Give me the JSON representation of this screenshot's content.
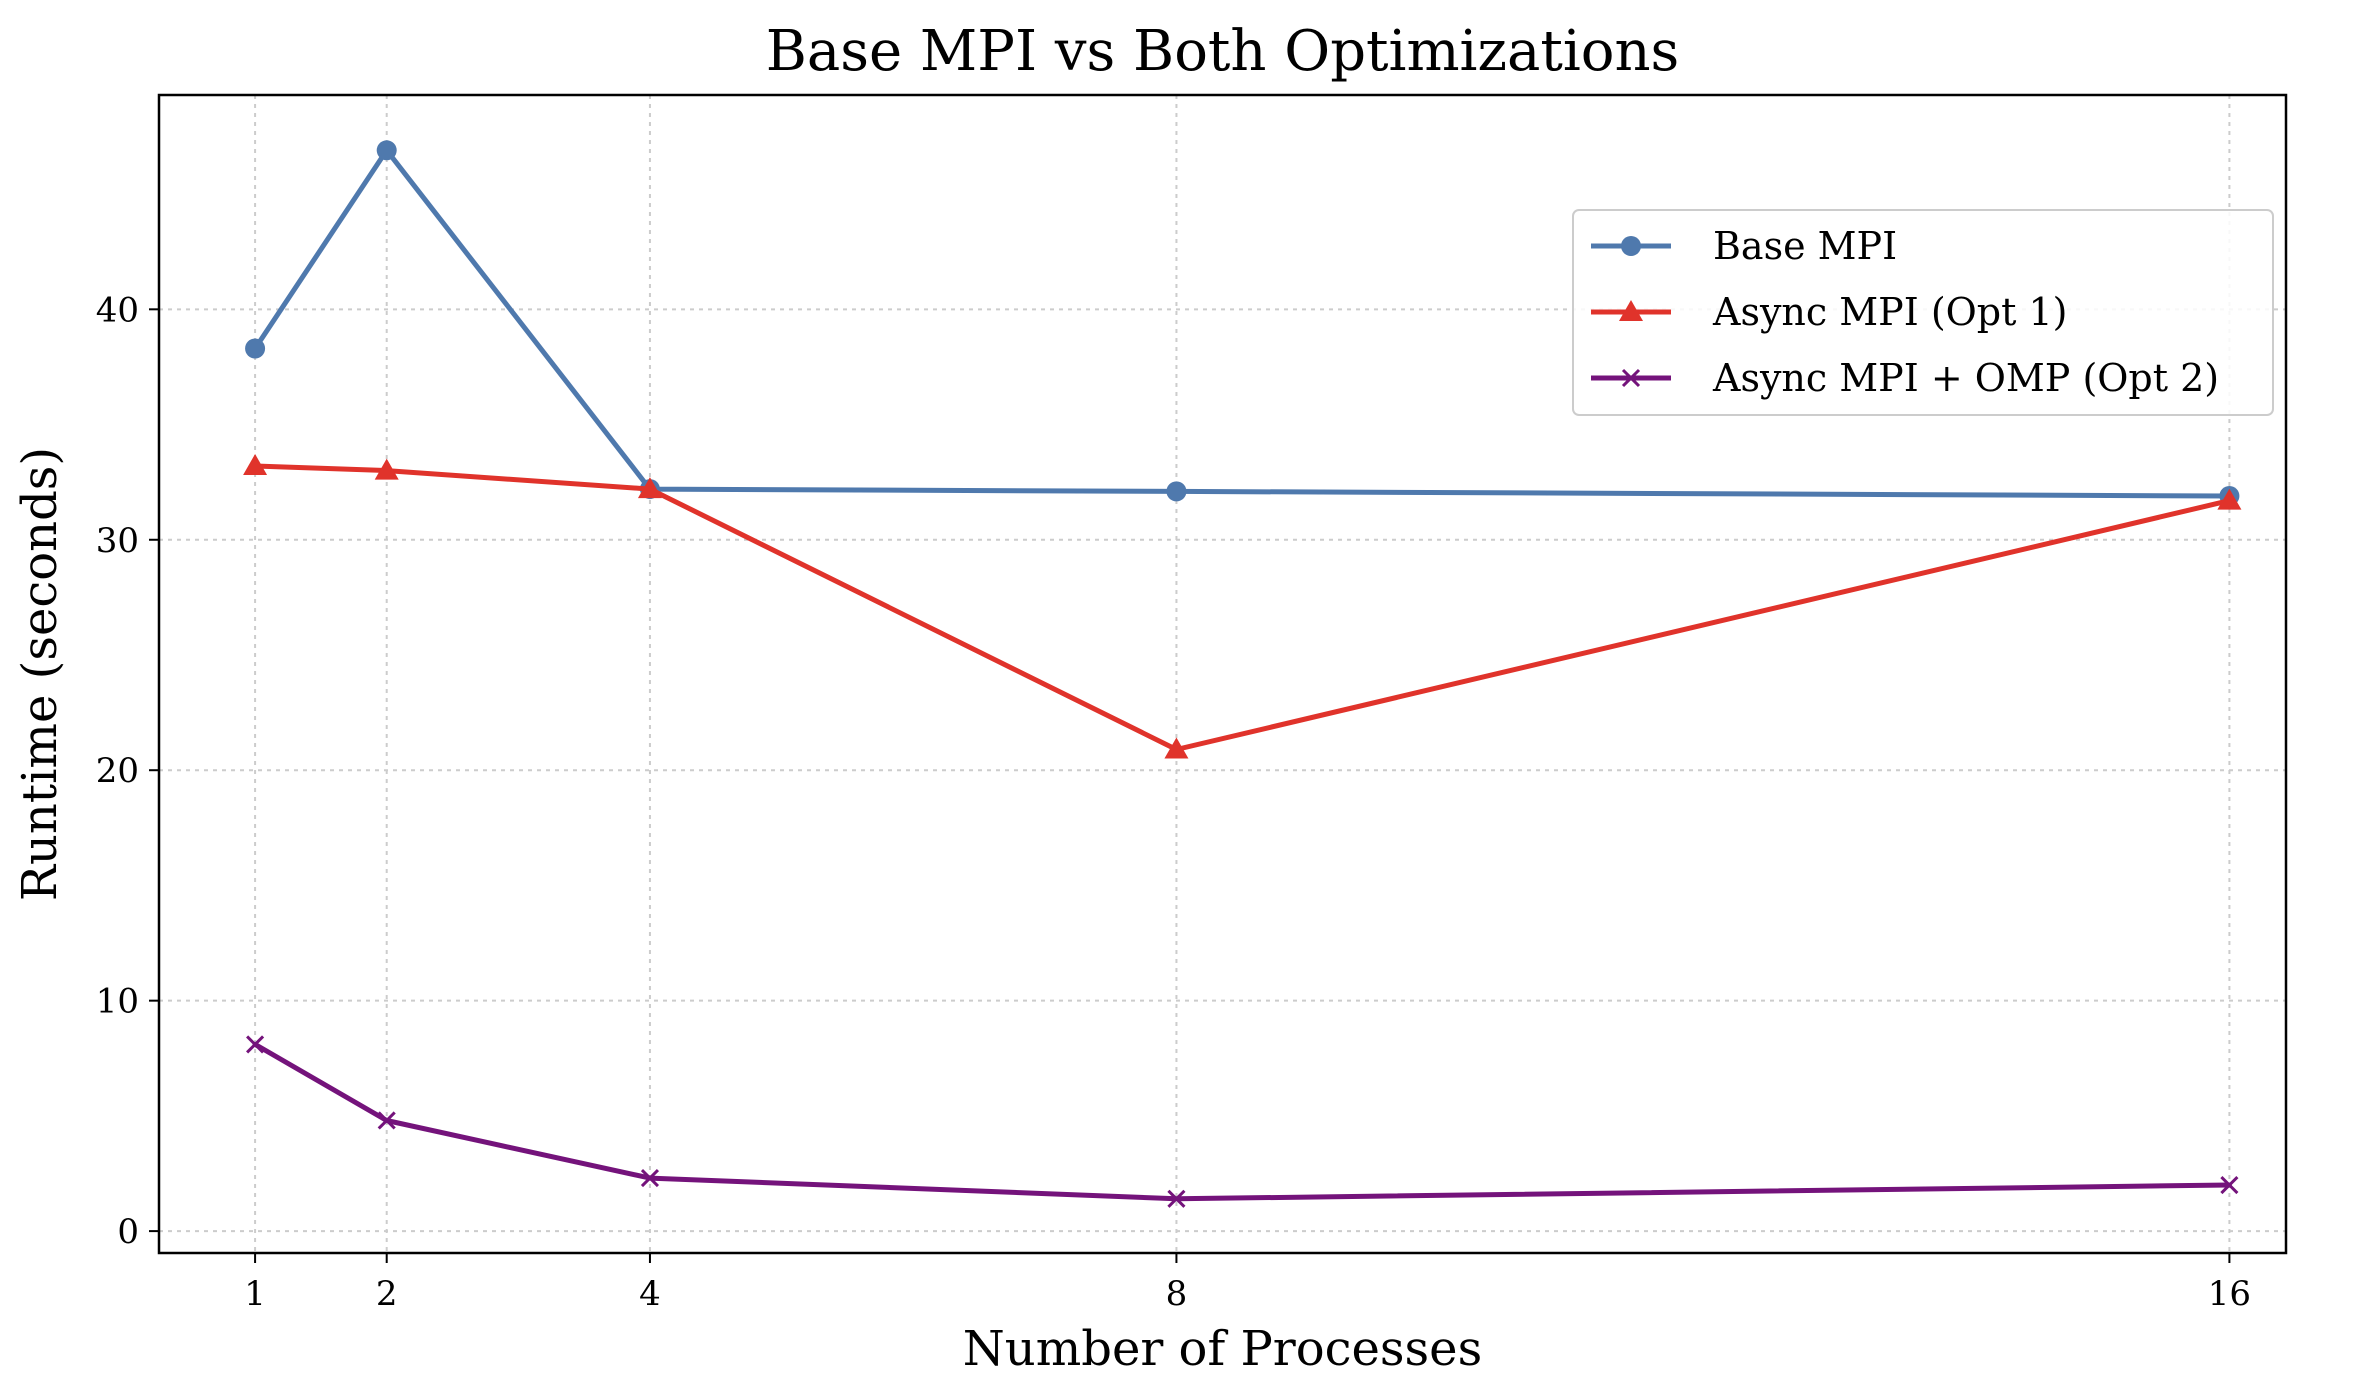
{
  "chart_data": {
    "type": "line",
    "title": "Base MPI vs Both Optimizations",
    "xlabel": "Number of Processes",
    "ylabel": "Runtime (seconds)",
    "x": [
      1,
      2,
      4,
      8,
      16
    ],
    "xticks": [
      "1",
      "2",
      "4",
      "8",
      "16"
    ],
    "yticks": [
      0,
      10,
      20,
      30,
      40
    ],
    "xlim": [
      0.27,
      16.43
    ],
    "ylim": [
      -0.95,
      49.3
    ],
    "grid": true,
    "legend_position": "upper-right",
    "series": [
      {
        "name": "Base MPI",
        "values": [
          38.3,
          46.9,
          32.2,
          32.1,
          31.9
        ],
        "color": "#4f79ad",
        "marker": "circle"
      },
      {
        "name": "Async MPI (Opt 1)",
        "values": [
          33.2,
          33.0,
          32.2,
          20.9,
          31.7
        ],
        "color": "#e0332b",
        "marker": "triangle"
      },
      {
        "name": "Async MPI + OMP (Opt 2)",
        "values": [
          8.1,
          4.8,
          2.3,
          1.4,
          2.0
        ],
        "color": "#74137b",
        "marker": "x"
      }
    ]
  }
}
